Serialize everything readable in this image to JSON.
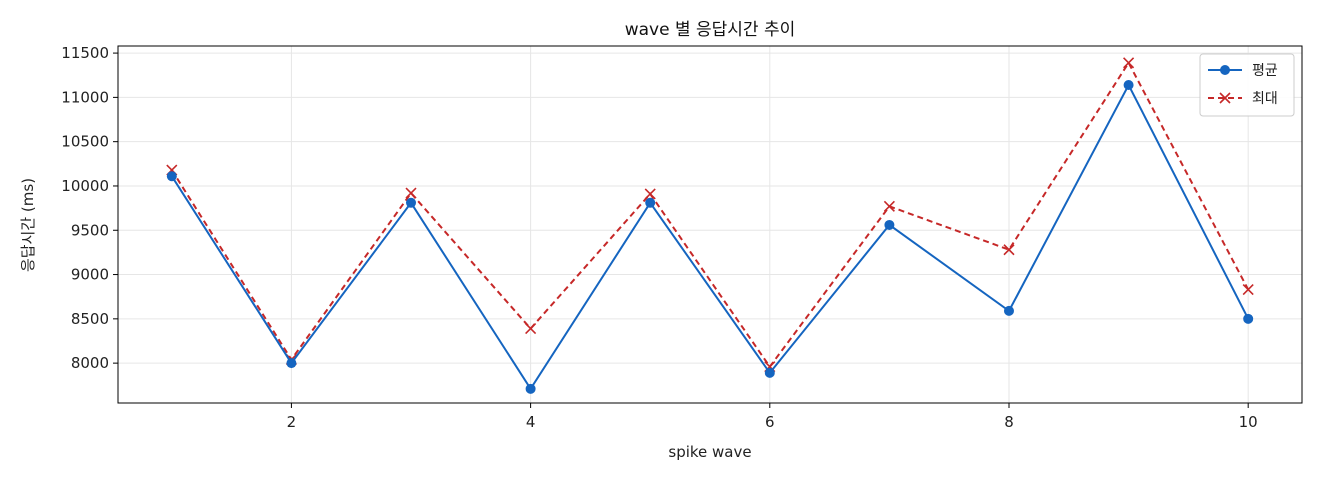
{
  "chart_data": {
    "type": "line",
    "title": "wave 별 응답시간 추이",
    "xlabel": "spike wave",
    "ylabel": "응답시간 (ms)",
    "x": [
      1,
      2,
      3,
      4,
      5,
      6,
      7,
      8,
      9,
      10
    ],
    "xlim": [
      0.55,
      10.45
    ],
    "ylim": [
      7550,
      11580
    ],
    "xticks": [
      2,
      4,
      6,
      8,
      10
    ],
    "yticks": [
      8000,
      8500,
      9000,
      9500,
      10000,
      10500,
      11000,
      11500
    ],
    "grid": true,
    "legend_position": "top-right",
    "series": [
      {
        "name": "평균",
        "values": [
          10110,
          8000,
          9810,
          7710,
          9810,
          7890,
          9560,
          8590,
          11140,
          8500
        ],
        "color": "#1565c0",
        "line_style": "solid",
        "marker": "circle"
      },
      {
        "name": "최대",
        "values": [
          10180,
          8040,
          9920,
          8390,
          9910,
          7960,
          9770,
          9280,
          11390,
          8830
        ],
        "color": "#c62828",
        "line_style": "dashed",
        "marker": "x"
      }
    ]
  }
}
